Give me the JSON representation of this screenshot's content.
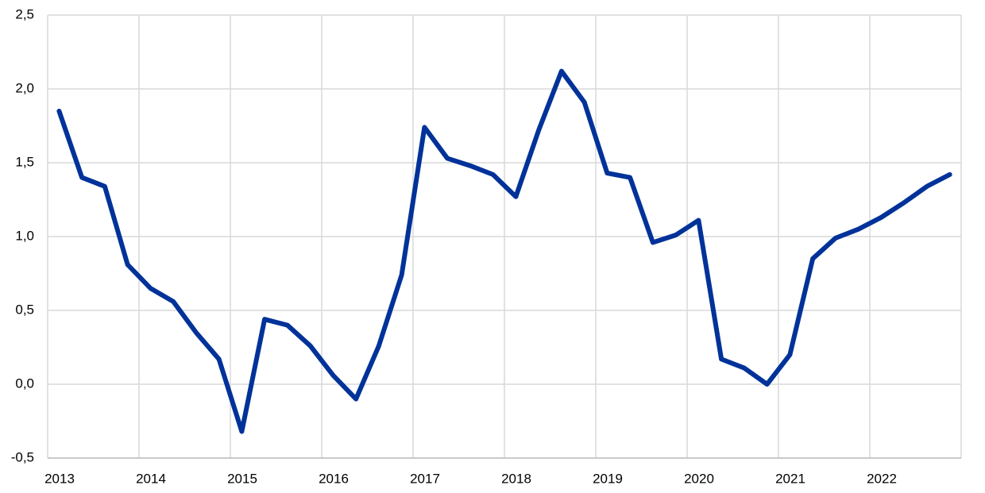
{
  "chart_data": {
    "type": "line",
    "x": [
      2013.125,
      2013.375,
      2013.625,
      2013.875,
      2014.125,
      2014.375,
      2014.625,
      2014.875,
      2015.125,
      2015.375,
      2015.625,
      2015.875,
      2016.125,
      2016.375,
      2016.625,
      2016.875,
      2017.125,
      2017.375,
      2017.625,
      2017.875,
      2018.125,
      2018.375,
      2018.625,
      2018.875,
      2019.125,
      2019.375,
      2019.625,
      2019.875,
      2020.125,
      2020.375,
      2020.625,
      2020.875,
      2021.125,
      2021.375,
      2021.625,
      2021.875,
      2022.125,
      2022.375,
      2022.625,
      2022.875
    ],
    "values": [
      1.85,
      1.4,
      1.34,
      0.81,
      0.65,
      0.56,
      0.35,
      0.17,
      -0.32,
      0.44,
      0.4,
      0.26,
      0.06,
      -0.1,
      0.26,
      0.74,
      1.74,
      1.53,
      1.48,
      1.42,
      1.27,
      1.72,
      2.12,
      1.91,
      1.43,
      1.4,
      0.96,
      1.01,
      1.11,
      0.17,
      0.11,
      0.0,
      0.2,
      0.85,
      0.99,
      1.05,
      1.13,
      1.23,
      1.34,
      1.42
    ],
    "color": "#003299",
    "xlim": [
      2013,
      2023
    ],
    "xticks": [
      2013,
      2014,
      2015,
      2016,
      2017,
      2018,
      2019,
      2020,
      2021,
      2022
    ],
    "ylim": [
      -0.5,
      2.5
    ],
    "yticks": [
      {
        "value": -0.5,
        "label": "-0,5"
      },
      {
        "value": 0,
        "label": "0,0"
      },
      {
        "value": 0.5,
        "label": "0,5"
      },
      {
        "value": 1,
        "label": "1,0"
      },
      {
        "value": 1.5,
        "label": "1,5"
      },
      {
        "value": 2,
        "label": "2,0"
      },
      {
        "value": 2.5,
        "label": "2,5"
      }
    ],
    "grid": true
  }
}
